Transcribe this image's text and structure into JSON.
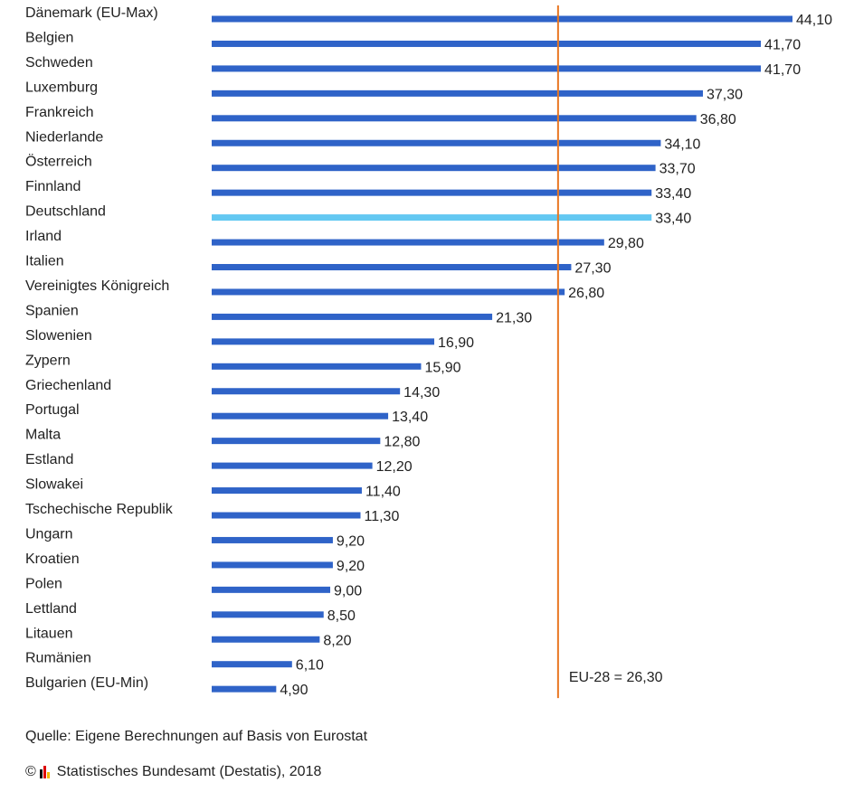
{
  "chart_data": {
    "type": "bar",
    "orientation": "horizontal",
    "categories": [
      "Dänemark (EU-Max)",
      "Belgien",
      "Schweden",
      "Luxemburg",
      "Frankreich",
      "Niederlande",
      "Österreich",
      "Finnland",
      "Deutschland",
      "Irland",
      "Italien",
      "Vereinigtes Königreich",
      "Spanien",
      "Slowenien",
      "Zypern",
      "Griechenland",
      "Portugal",
      "Malta",
      "Estland",
      "Slowakei",
      "Tschechische Republik",
      "Ungarn",
      "Kroatien",
      "Polen",
      "Lettland",
      "Litauen",
      "Rumänien",
      "Bulgarien (EU-Min)"
    ],
    "values": [
      44.1,
      41.7,
      41.7,
      37.3,
      36.8,
      34.1,
      33.7,
      33.4,
      33.4,
      29.8,
      27.3,
      26.8,
      21.3,
      16.9,
      15.9,
      14.3,
      13.4,
      12.8,
      12.2,
      11.4,
      11.3,
      9.2,
      9.2,
      9.0,
      8.5,
      8.2,
      6.1,
      4.9
    ],
    "value_labels": [
      "44,10",
      "41,70",
      "41,70",
      "37,30",
      "36,80",
      "34,10",
      "33,70",
      "33,40",
      "33,40",
      "29,80",
      "27,30",
      "26,80",
      "21,30",
      "16,90",
      "15,90",
      "14,30",
      "13,40",
      "12,80",
      "12,20",
      "11,40",
      "11,30",
      "9,20",
      "9,20",
      "9,00",
      "8,50",
      "8,20",
      "6,10",
      "4,90"
    ],
    "highlight_category": "Deutschland",
    "reference_line": {
      "value": 26.3,
      "label": "EU-28 = 26,30"
    },
    "xlim": [
      0,
      44.1
    ],
    "grid": false,
    "colors": {
      "bar": "#2f63c8",
      "highlight": "#63c8f2",
      "reference": "#e87722"
    }
  },
  "footer": {
    "source": "Quelle: Eigene Berechnungen auf Basis von Eurostat",
    "copyright": "Statistisches Bundesamt (Destatis), 2018",
    "copyright_symbol": "©"
  }
}
